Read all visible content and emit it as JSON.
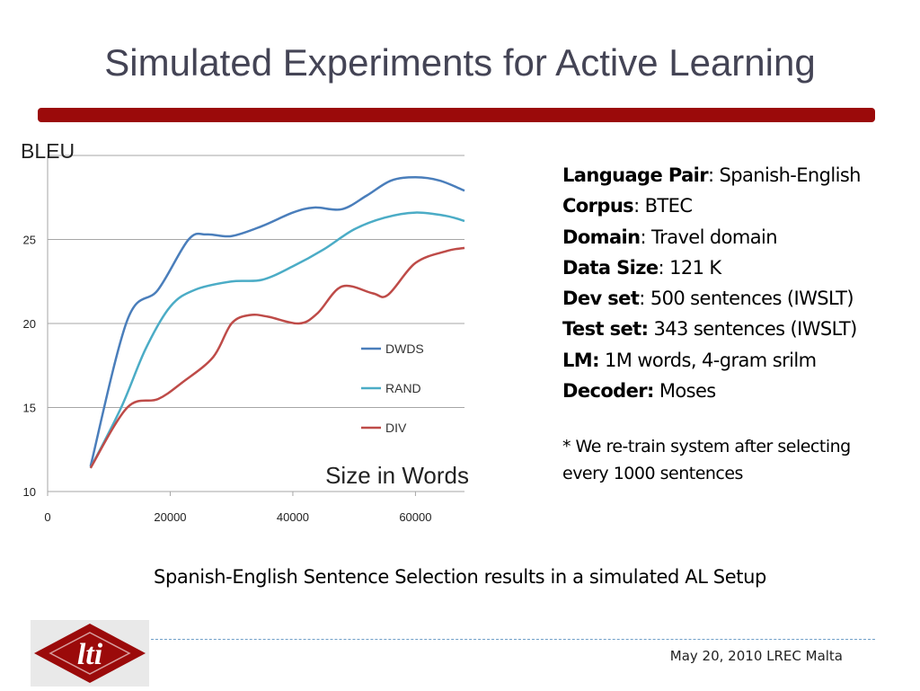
{
  "slide": {
    "title": "Simulated Experiments for Active Learning",
    "caption": "Spanish-English Sentence Selection results in a simulated AL Setup",
    "footer": "May 20, 2010  LREC Malta",
    "logo_text": "lti",
    "accent_color": "#9b0a0a"
  },
  "info": [
    {
      "label": "Language Pair",
      "sep": ": ",
      "value": "Spanish-English"
    },
    {
      "label": "Corpus",
      "sep": ": ",
      "value": "BTEC"
    },
    {
      "label": "Domain",
      "sep": ": ",
      "value": "Travel domain"
    },
    {
      "label": "Data Size",
      "sep": ": ",
      "value": "121 K"
    },
    {
      "label": "Dev set",
      "sep": ": ",
      "value": "500 sentences (IWSLT)"
    },
    {
      "label": "Test set:",
      "sep": " ",
      "value": "343 sentences (IWSLT)"
    },
    {
      "label": "LM:",
      "sep": " ",
      "value": "1M words, 4-gram srilm"
    },
    {
      "label": "Decoder:",
      "sep": " ",
      "value": "Moses"
    }
  ],
  "note": [
    "* We re-train system after selecting",
    "every 1000 sentences"
  ],
  "chart_data": {
    "type": "line",
    "ylabel": "BLEU",
    "xlabel": "Size in Words",
    "xlim": [
      0,
      68000
    ],
    "ylim": [
      10,
      30
    ],
    "xticks": [
      0,
      20000,
      40000,
      60000
    ],
    "yticks": [
      10,
      15,
      20,
      25
    ],
    "grid": true,
    "legend": "right-center",
    "series": [
      {
        "name": "DWDS",
        "color": "#4a7ebb",
        "x": [
          7000,
          13000,
          18000,
          23000,
          26000,
          30000,
          35000,
          40000,
          43500,
          48000,
          52000,
          56000,
          60000,
          64000,
          68000
        ],
        "y": [
          11.5,
          20.2,
          22,
          25,
          25.3,
          25.2,
          25.8,
          26.6,
          26.9,
          26.8,
          27.6,
          28.5,
          28.7,
          28.5,
          27.9
        ]
      },
      {
        "name": "RAND",
        "color": "#4bacc6",
        "x": [
          7000,
          12000,
          16000,
          20000,
          24000,
          30000,
          35000,
          40000,
          45000,
          50000,
          55000,
          60000,
          65000,
          68000
        ],
        "y": [
          11.4,
          15,
          18.5,
          21,
          22,
          22.5,
          22.6,
          23.4,
          24.4,
          25.6,
          26.3,
          26.6,
          26.4,
          26.1
        ]
      },
      {
        "name": "DIV",
        "color": "#be4b48",
        "x": [
          7000,
          13000,
          18000,
          22000,
          27000,
          30000,
          33000,
          36000,
          41000,
          44000,
          48000,
          53000,
          55500,
          60000,
          65000,
          68000
        ],
        "y": [
          11.4,
          15,
          15.5,
          16.5,
          18,
          20,
          20.5,
          20.4,
          20,
          20.6,
          22.2,
          21.8,
          21.7,
          23.6,
          24.3,
          24.5
        ]
      }
    ]
  }
}
